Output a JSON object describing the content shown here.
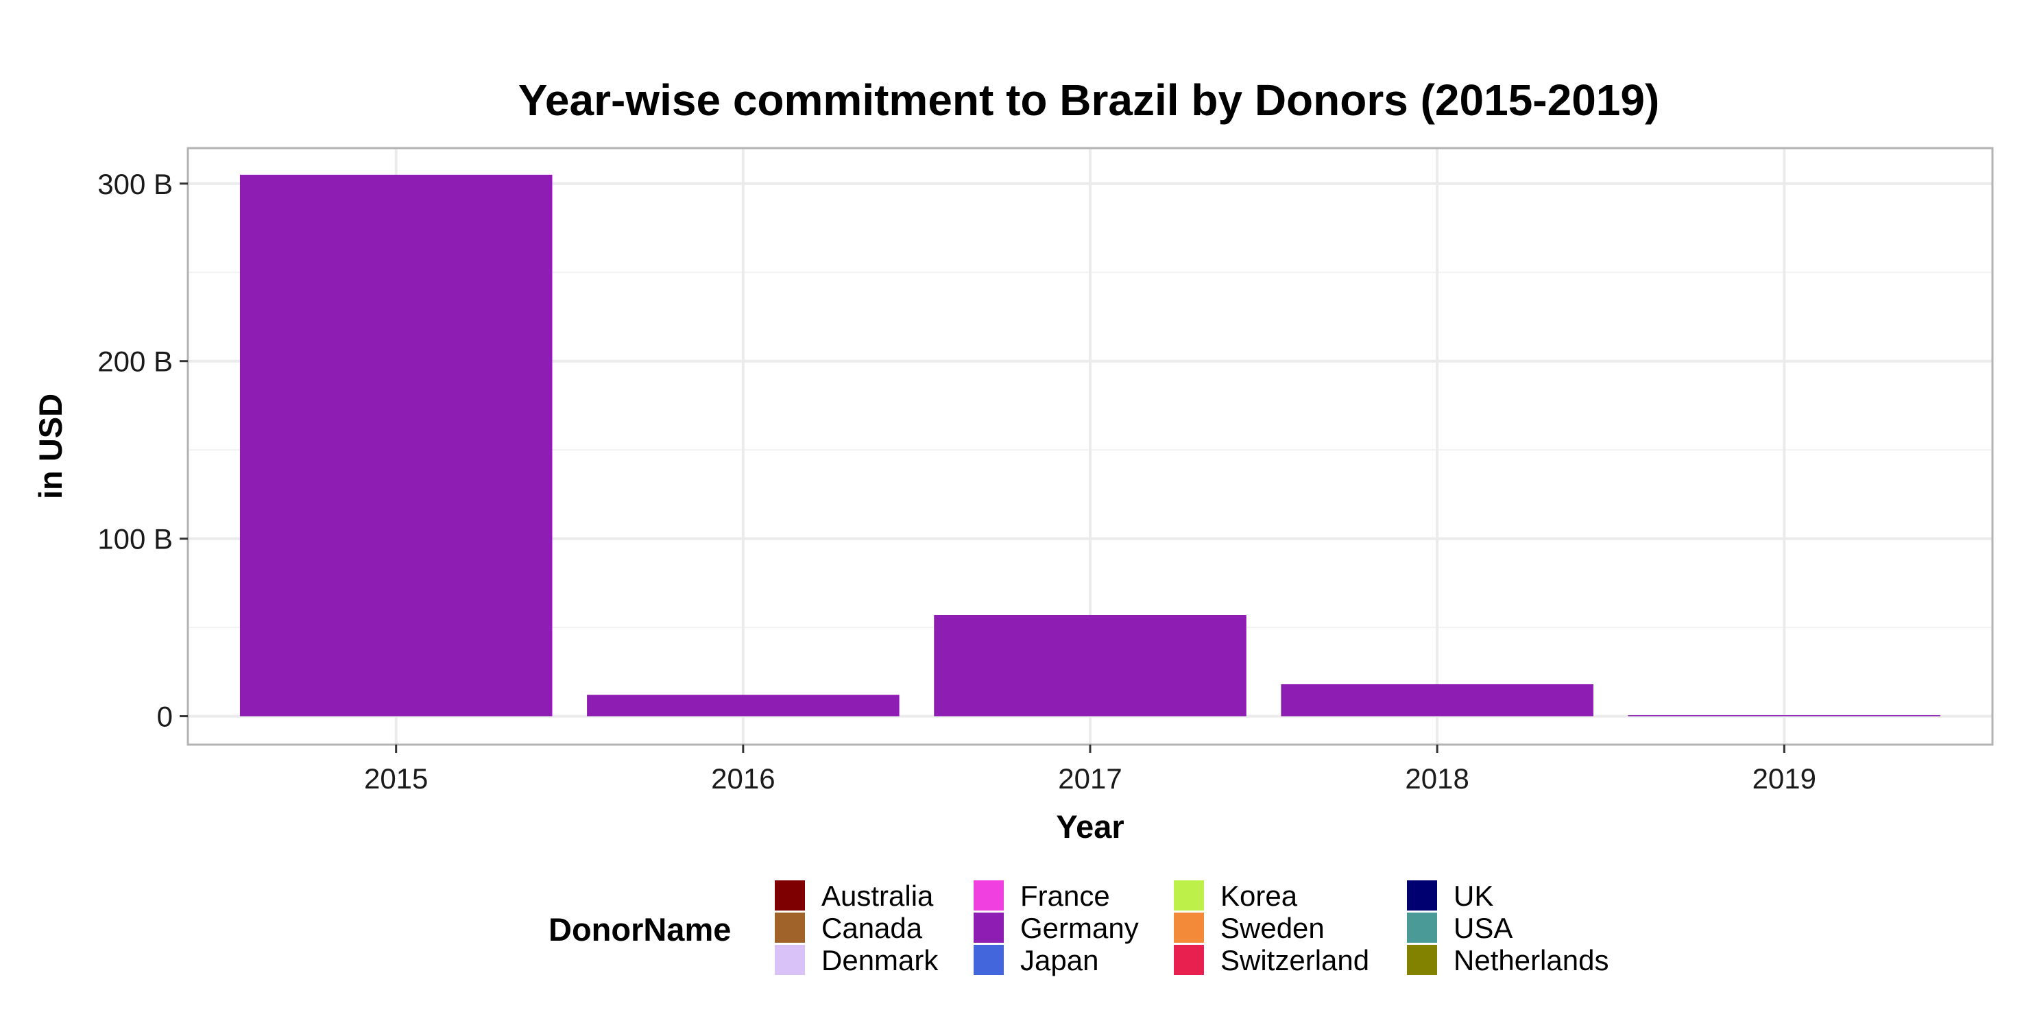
{
  "chart_data": {
    "type": "bar",
    "title": "Year-wise commitment to Brazil by Donors (2015-2019)",
    "xlabel": "Year",
    "ylabel": "in USD",
    "categories": [
      "2015",
      "2016",
      "2017",
      "2018",
      "2019"
    ],
    "y_ticks": [
      {
        "value": 0,
        "label": "0"
      },
      {
        "value": 100,
        "label": "100 B"
      },
      {
        "value": 200,
        "label": "200 B"
      },
      {
        "value": 300,
        "label": "300 B"
      }
    ],
    "ylim": [
      -16,
      320
    ],
    "grid": true,
    "bar_color": "#8E1EB3",
    "series": [
      {
        "name": "Germany",
        "values": [
          305,
          12,
          57,
          18,
          0.5
        ]
      }
    ],
    "legend": {
      "title": "DonorName",
      "position": "bottom",
      "items": [
        {
          "name": "Australia",
          "color": "#7F0000"
        },
        {
          "name": "Canada",
          "color": "#A0632A"
        },
        {
          "name": "Denmark",
          "color": "#D9C2F8"
        },
        {
          "name": "France",
          "color": "#F040E0"
        },
        {
          "name": "Germany",
          "color": "#8E1EB3"
        },
        {
          "name": "Japan",
          "color": "#4466DD"
        },
        {
          "name": "Korea",
          "color": "#BEF04A"
        },
        {
          "name": "Sweden",
          "color": "#F28A3A"
        },
        {
          "name": "Switzerland",
          "color": "#E82050"
        },
        {
          "name": "UK",
          "color": "#000070"
        },
        {
          "name": "USA",
          "color": "#4A9A98"
        },
        {
          "name": "Netherlands",
          "color": "#828200"
        }
      ]
    }
  }
}
